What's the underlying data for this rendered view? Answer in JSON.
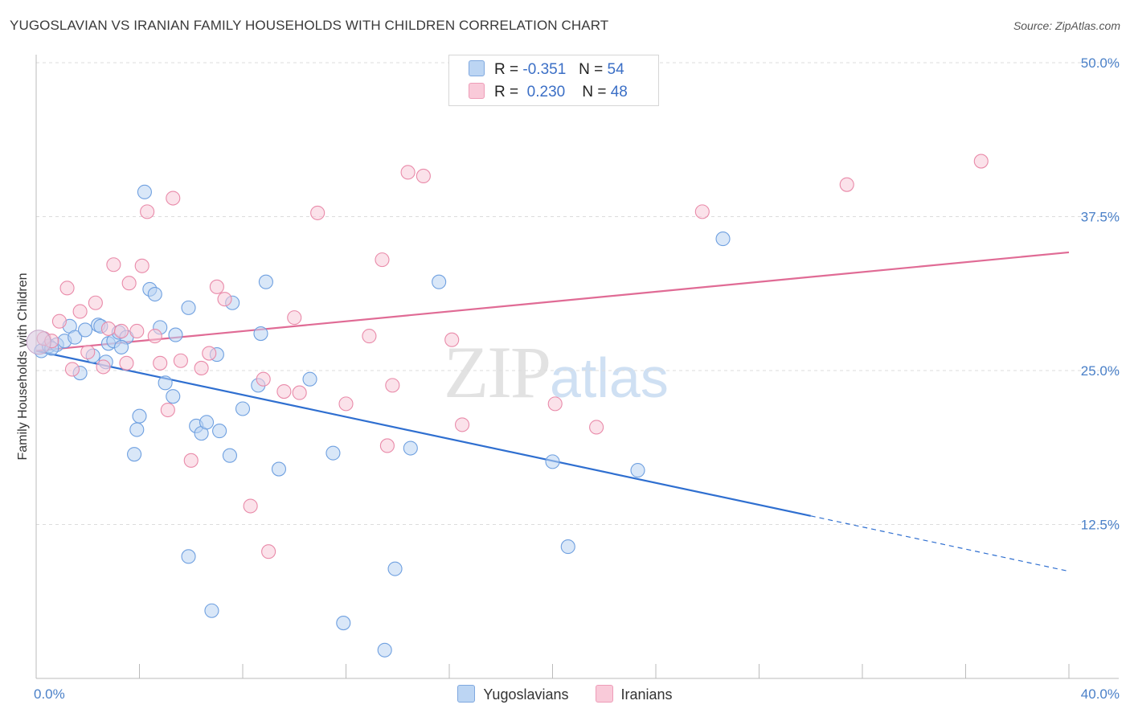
{
  "header": {
    "title": "YUGOSLAVIAN VS IRANIAN FAMILY HOUSEHOLDS WITH CHILDREN CORRELATION CHART",
    "source": "Source: ZipAtlas.com"
  },
  "legend": {
    "rows": [
      {
        "r_label": "R =",
        "r_value": "-0.351",
        "n_label": "N =",
        "n_value": "54",
        "color": "#a9c8ee"
      },
      {
        "r_label": "R =",
        "r_value": "0.230",
        "n_label": "N =",
        "n_value": "48",
        "color": "#f6bfd0"
      }
    ]
  },
  "bottom_legend": {
    "items": [
      {
        "label": "Yugoslavians",
        "color": "#a9c8ee"
      },
      {
        "label": "Iranians",
        "color": "#f6bfd0"
      }
    ]
  },
  "watermark": {
    "zip": "ZIP",
    "atlas": "atlas"
  },
  "chart_data": {
    "type": "scatter",
    "title": "YUGOSLAVIAN VS IRANIAN FAMILY HOUSEHOLDS WITH CHILDREN CORRELATION CHART",
    "ylabel": "Family Households with Children",
    "xlabel": "",
    "xlim": [
      0,
      40
    ],
    "ylim": [
      0,
      50
    ],
    "x_tick_labels": [
      "0.0%",
      "40.0%"
    ],
    "y_ticks": [
      12.5,
      25.0,
      37.5,
      50.0
    ],
    "y_tick_labels": [
      "12.5%",
      "25.0%",
      "37.5%",
      "50.0%"
    ],
    "grid": "horizontal dashed",
    "legend_position": "top-center",
    "series": [
      {
        "name": "Yugoslavians",
        "color": "#6fa0e0",
        "fill": "#b9d3f3",
        "trend_color": "#2f6fd0",
        "trend": {
          "x0": 0,
          "y0": 26.6,
          "x1": 30.0,
          "y1": 13.2,
          "dash_to_x": 40.0,
          "dash_to_y": 8.7
        },
        "points": [
          [
            0.2,
            26.6
          ],
          [
            0.5,
            27.0
          ],
          [
            0.8,
            27.1
          ],
          [
            1.1,
            27.4
          ],
          [
            1.3,
            28.6
          ],
          [
            1.5,
            27.7
          ],
          [
            1.7,
            24.8
          ],
          [
            1.9,
            28.3
          ],
          [
            2.2,
            26.2
          ],
          [
            2.4,
            28.7
          ],
          [
            2.5,
            28.6
          ],
          [
            2.7,
            25.7
          ],
          [
            2.8,
            27.2
          ],
          [
            3.0,
            27.4
          ],
          [
            3.2,
            28.1
          ],
          [
            3.5,
            27.7
          ],
          [
            3.8,
            18.2
          ],
          [
            3.9,
            20.2
          ],
          [
            4.0,
            21.3
          ],
          [
            4.2,
            39.5
          ],
          [
            4.4,
            31.6
          ],
          [
            4.6,
            31.2
          ],
          [
            4.8,
            28.5
          ],
          [
            5.0,
            24.0
          ],
          [
            5.3,
            22.9
          ],
          [
            5.4,
            27.9
          ],
          [
            5.9,
            30.1
          ],
          [
            6.2,
            20.5
          ],
          [
            6.4,
            19.9
          ],
          [
            6.6,
            20.8
          ],
          [
            6.8,
            5.5
          ],
          [
            7.0,
            26.3
          ],
          [
            7.1,
            20.1
          ],
          [
            7.5,
            18.1
          ],
          [
            7.6,
            30.5
          ],
          [
            8.0,
            21.9
          ],
          [
            8.6,
            23.8
          ],
          [
            8.7,
            28.0
          ],
          [
            8.9,
            32.2
          ],
          [
            9.4,
            17.0
          ],
          [
            10.6,
            24.3
          ],
          [
            11.5,
            18.3
          ],
          [
            11.9,
            4.5
          ],
          [
            13.5,
            2.3
          ],
          [
            13.9,
            8.9
          ],
          [
            14.5,
            18.7
          ],
          [
            15.6,
            32.2
          ],
          [
            20.0,
            17.6
          ],
          [
            20.6,
            10.7
          ],
          [
            23.3,
            16.9
          ],
          [
            26.6,
            35.7
          ],
          [
            5.9,
            9.9
          ],
          [
            3.3,
            26.9
          ],
          [
            0.6,
            26.8
          ]
        ]
      },
      {
        "name": "Iranians",
        "color": "#e98aa9",
        "fill": "#f8cbd9",
        "trend_color": "#e06b95",
        "trend": {
          "x0": 0,
          "y0": 26.6,
          "x1": 40.0,
          "y1": 34.6
        },
        "points": [
          [
            0.3,
            27.6
          ],
          [
            0.6,
            27.4
          ],
          [
            0.9,
            29.0
          ],
          [
            1.2,
            31.7
          ],
          [
            1.4,
            25.1
          ],
          [
            1.7,
            29.8
          ],
          [
            2.0,
            26.5
          ],
          [
            2.3,
            30.5
          ],
          [
            2.6,
            25.3
          ],
          [
            2.8,
            28.4
          ],
          [
            3.0,
            33.6
          ],
          [
            3.3,
            28.2
          ],
          [
            3.5,
            25.6
          ],
          [
            3.6,
            32.1
          ],
          [
            3.9,
            28.2
          ],
          [
            4.1,
            33.5
          ],
          [
            4.3,
            37.9
          ],
          [
            4.6,
            27.8
          ],
          [
            4.8,
            25.6
          ],
          [
            5.1,
            21.8
          ],
          [
            5.3,
            39.0
          ],
          [
            5.6,
            25.8
          ],
          [
            6.0,
            17.7
          ],
          [
            6.4,
            25.2
          ],
          [
            6.7,
            26.4
          ],
          [
            7.0,
            31.8
          ],
          [
            7.3,
            30.8
          ],
          [
            8.3,
            14.0
          ],
          [
            8.8,
            24.3
          ],
          [
            9.0,
            10.3
          ],
          [
            9.6,
            23.3
          ],
          [
            10.0,
            29.3
          ],
          [
            10.2,
            23.2
          ],
          [
            10.9,
            37.8
          ],
          [
            12.0,
            22.3
          ],
          [
            12.9,
            27.8
          ],
          [
            13.4,
            34.0
          ],
          [
            13.6,
            18.9
          ],
          [
            13.8,
            23.8
          ],
          [
            14.4,
            41.1
          ],
          [
            15.0,
            40.8
          ],
          [
            16.1,
            27.5
          ],
          [
            16.5,
            20.6
          ],
          [
            20.1,
            22.3
          ],
          [
            21.7,
            20.4
          ],
          [
            25.8,
            37.9
          ],
          [
            31.4,
            40.1
          ],
          [
            36.6,
            42.0
          ]
        ]
      }
    ]
  }
}
